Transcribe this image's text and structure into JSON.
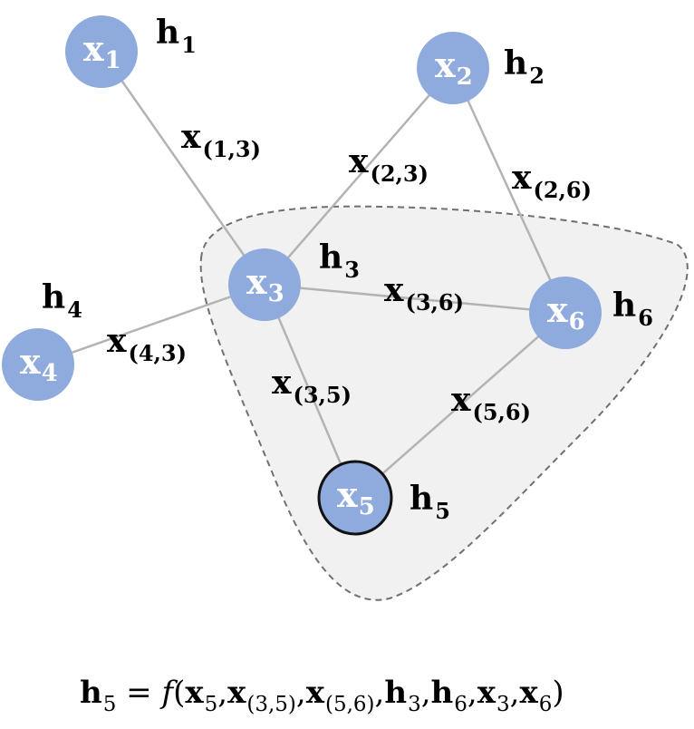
{
  "nodes": [
    {
      "id": "x1",
      "base": "x",
      "sub": "1",
      "hbase": "h",
      "hsub": "1",
      "focus": false
    },
    {
      "id": "x2",
      "base": "x",
      "sub": "2",
      "hbase": "h",
      "hsub": "2",
      "focus": false
    },
    {
      "id": "x3",
      "base": "x",
      "sub": "3",
      "hbase": "h",
      "hsub": "3",
      "focus": false
    },
    {
      "id": "x4",
      "base": "x",
      "sub": "4",
      "hbase": "h",
      "hsub": "4",
      "focus": false
    },
    {
      "id": "x5",
      "base": "x",
      "sub": "5",
      "hbase": "h",
      "hsub": "5",
      "focus": true
    },
    {
      "id": "x6",
      "base": "x",
      "sub": "6",
      "hbase": "h",
      "hsub": "6",
      "focus": false
    }
  ],
  "edges": [
    {
      "from": "x1",
      "to": "x3",
      "base": "x",
      "sub": "(1,3)"
    },
    {
      "from": "x2",
      "to": "x3",
      "base": "x",
      "sub": "(2,3)"
    },
    {
      "from": "x2",
      "to": "x6",
      "base": "x",
      "sub": "(2,6)"
    },
    {
      "from": "x3",
      "to": "x6",
      "base": "x",
      "sub": "(3,6)"
    },
    {
      "from": "x4",
      "to": "x3",
      "base": "x",
      "sub": "(4,3)"
    },
    {
      "from": "x3",
      "to": "x5",
      "base": "x",
      "sub": "(3,5)"
    },
    {
      "from": "x5",
      "to": "x6",
      "base": "x",
      "sub": "(5,6)"
    }
  ],
  "neighborhood": {
    "members": [
      "x3",
      "x5",
      "x6"
    ],
    "style": "dashed"
  },
  "formula": {
    "tokens": [
      {
        "t": "h",
        "s": "5",
        "b": true
      },
      {
        "t": " = ",
        "s": ""
      },
      {
        "t": "f",
        "s": "",
        "i": true
      },
      {
        "t": "(",
        "s": ""
      },
      {
        "t": "x",
        "s": "5",
        "b": true
      },
      {
        "t": ",",
        "s": ""
      },
      {
        "t": "x",
        "s": "(3,5)",
        "b": true
      },
      {
        "t": ",",
        "s": ""
      },
      {
        "t": "x",
        "s": "(5,6)",
        "b": true
      },
      {
        "t": ",",
        "s": ""
      },
      {
        "t": "h",
        "s": "3",
        "b": true
      },
      {
        "t": ",",
        "s": ""
      },
      {
        "t": "h",
        "s": "6",
        "b": true
      },
      {
        "t": ",",
        "s": ""
      },
      {
        "t": "x",
        "s": "3",
        "b": true
      },
      {
        "t": ",",
        "s": ""
      },
      {
        "t": "x",
        "s": "6",
        "b": true
      },
      {
        "t": ")",
        "s": ""
      }
    ]
  },
  "colors": {
    "node": "#8faadc",
    "edge": "#b3b3b3",
    "region": "#f1f1f1",
    "region_border": "#707070"
  }
}
